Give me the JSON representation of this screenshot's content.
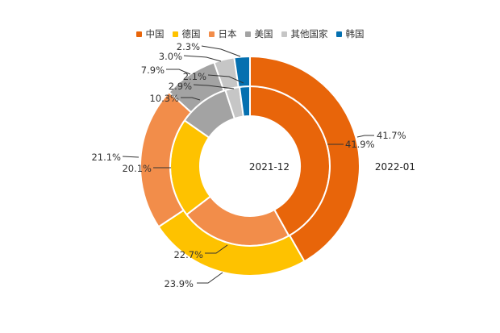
{
  "chart_data": {
    "type": "pie",
    "subtype": "nested-donut",
    "legend": {
      "position": "top-center",
      "entries": [
        "中国",
        "德国",
        "日本",
        "美国",
        "其他国家",
        "韩国"
      ]
    },
    "colors": {
      "中国": "#e8650a",
      "德国": "#fec200",
      "日本": "#f28d4a",
      "美国": "#a3a3a3",
      "其他国家": "#c6c6c6",
      "韩国": "#0570b0"
    },
    "series": [
      {
        "name": "2021-12",
        "ring": "inner",
        "categories": [
          "中国",
          "日本",
          "德国",
          "美国",
          "其他国家",
          "韩国"
        ],
        "values": [
          41.9,
          22.7,
          20.1,
          10.3,
          2.9,
          2.1
        ],
        "labels": [
          "41.9%",
          "22.7%",
          "20.1%",
          "10.3%",
          "2.9%",
          "2.1%"
        ]
      },
      {
        "name": "2022-01",
        "ring": "outer",
        "categories": [
          "中国",
          "德国",
          "日本",
          "美国",
          "其他国家",
          "韩国"
        ],
        "values": [
          41.7,
          23.9,
          21.1,
          7.9,
          3.0,
          2.3
        ],
        "labels": [
          "41.7%",
          "23.9%",
          "21.1%",
          "7.9%",
          "3.0%",
          "2.3%"
        ]
      }
    ]
  }
}
